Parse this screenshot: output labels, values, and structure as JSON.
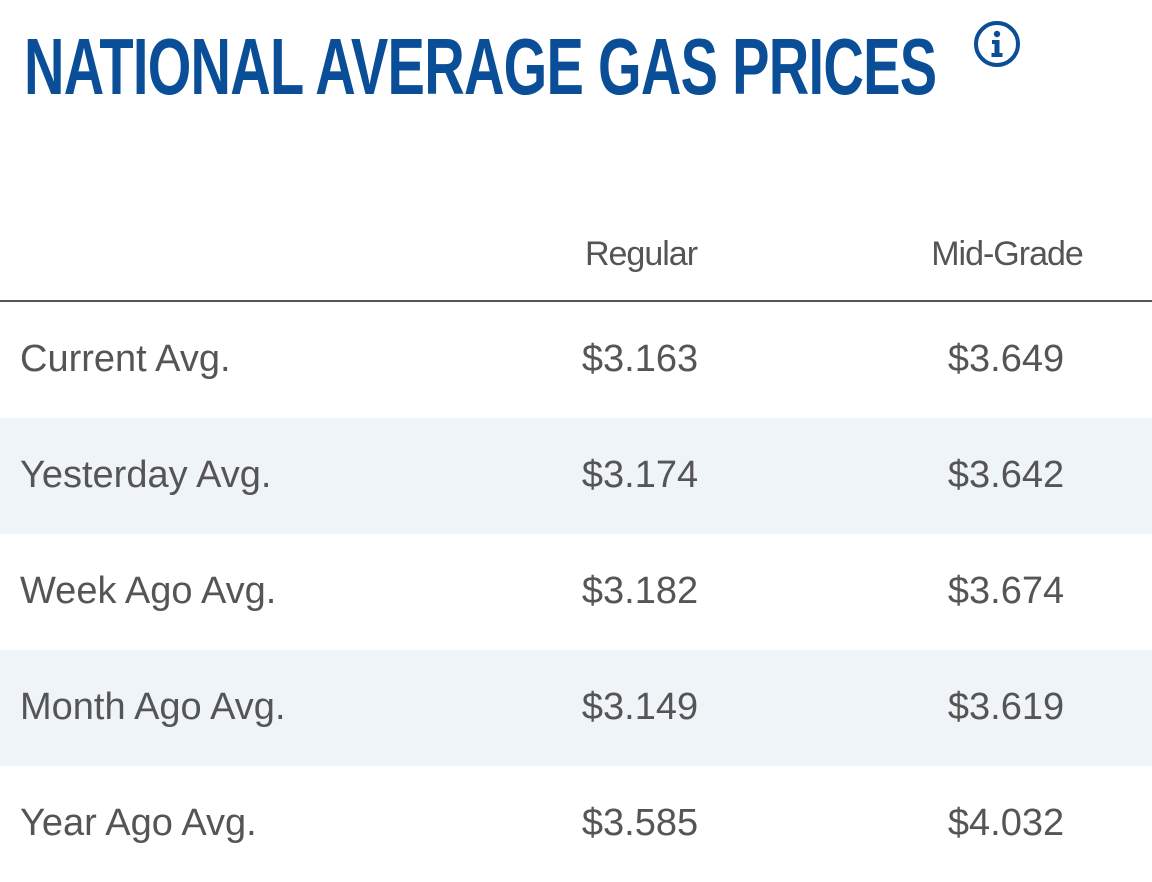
{
  "title": "NATIONAL AVERAGE GAS PRICES",
  "info_icon": "info-circle-icon",
  "colors": {
    "title": "#0a4e97",
    "text": "#555555",
    "alt_row": "#eff4f9",
    "divider": "#555555"
  },
  "columns": [
    "",
    "Regular",
    "Mid-Grade"
  ],
  "rows": [
    {
      "label": "Current Avg.",
      "regular": "$3.163",
      "mid_grade": "$3.649"
    },
    {
      "label": "Yesterday Avg.",
      "regular": "$3.174",
      "mid_grade": "$3.642"
    },
    {
      "label": "Week Ago Avg.",
      "regular": "$3.182",
      "mid_grade": "$3.674"
    },
    {
      "label": "Month Ago Avg.",
      "regular": "$3.149",
      "mid_grade": "$3.619"
    },
    {
      "label": "Year Ago Avg.",
      "regular": "$3.585",
      "mid_grade": "$4.032"
    }
  ]
}
